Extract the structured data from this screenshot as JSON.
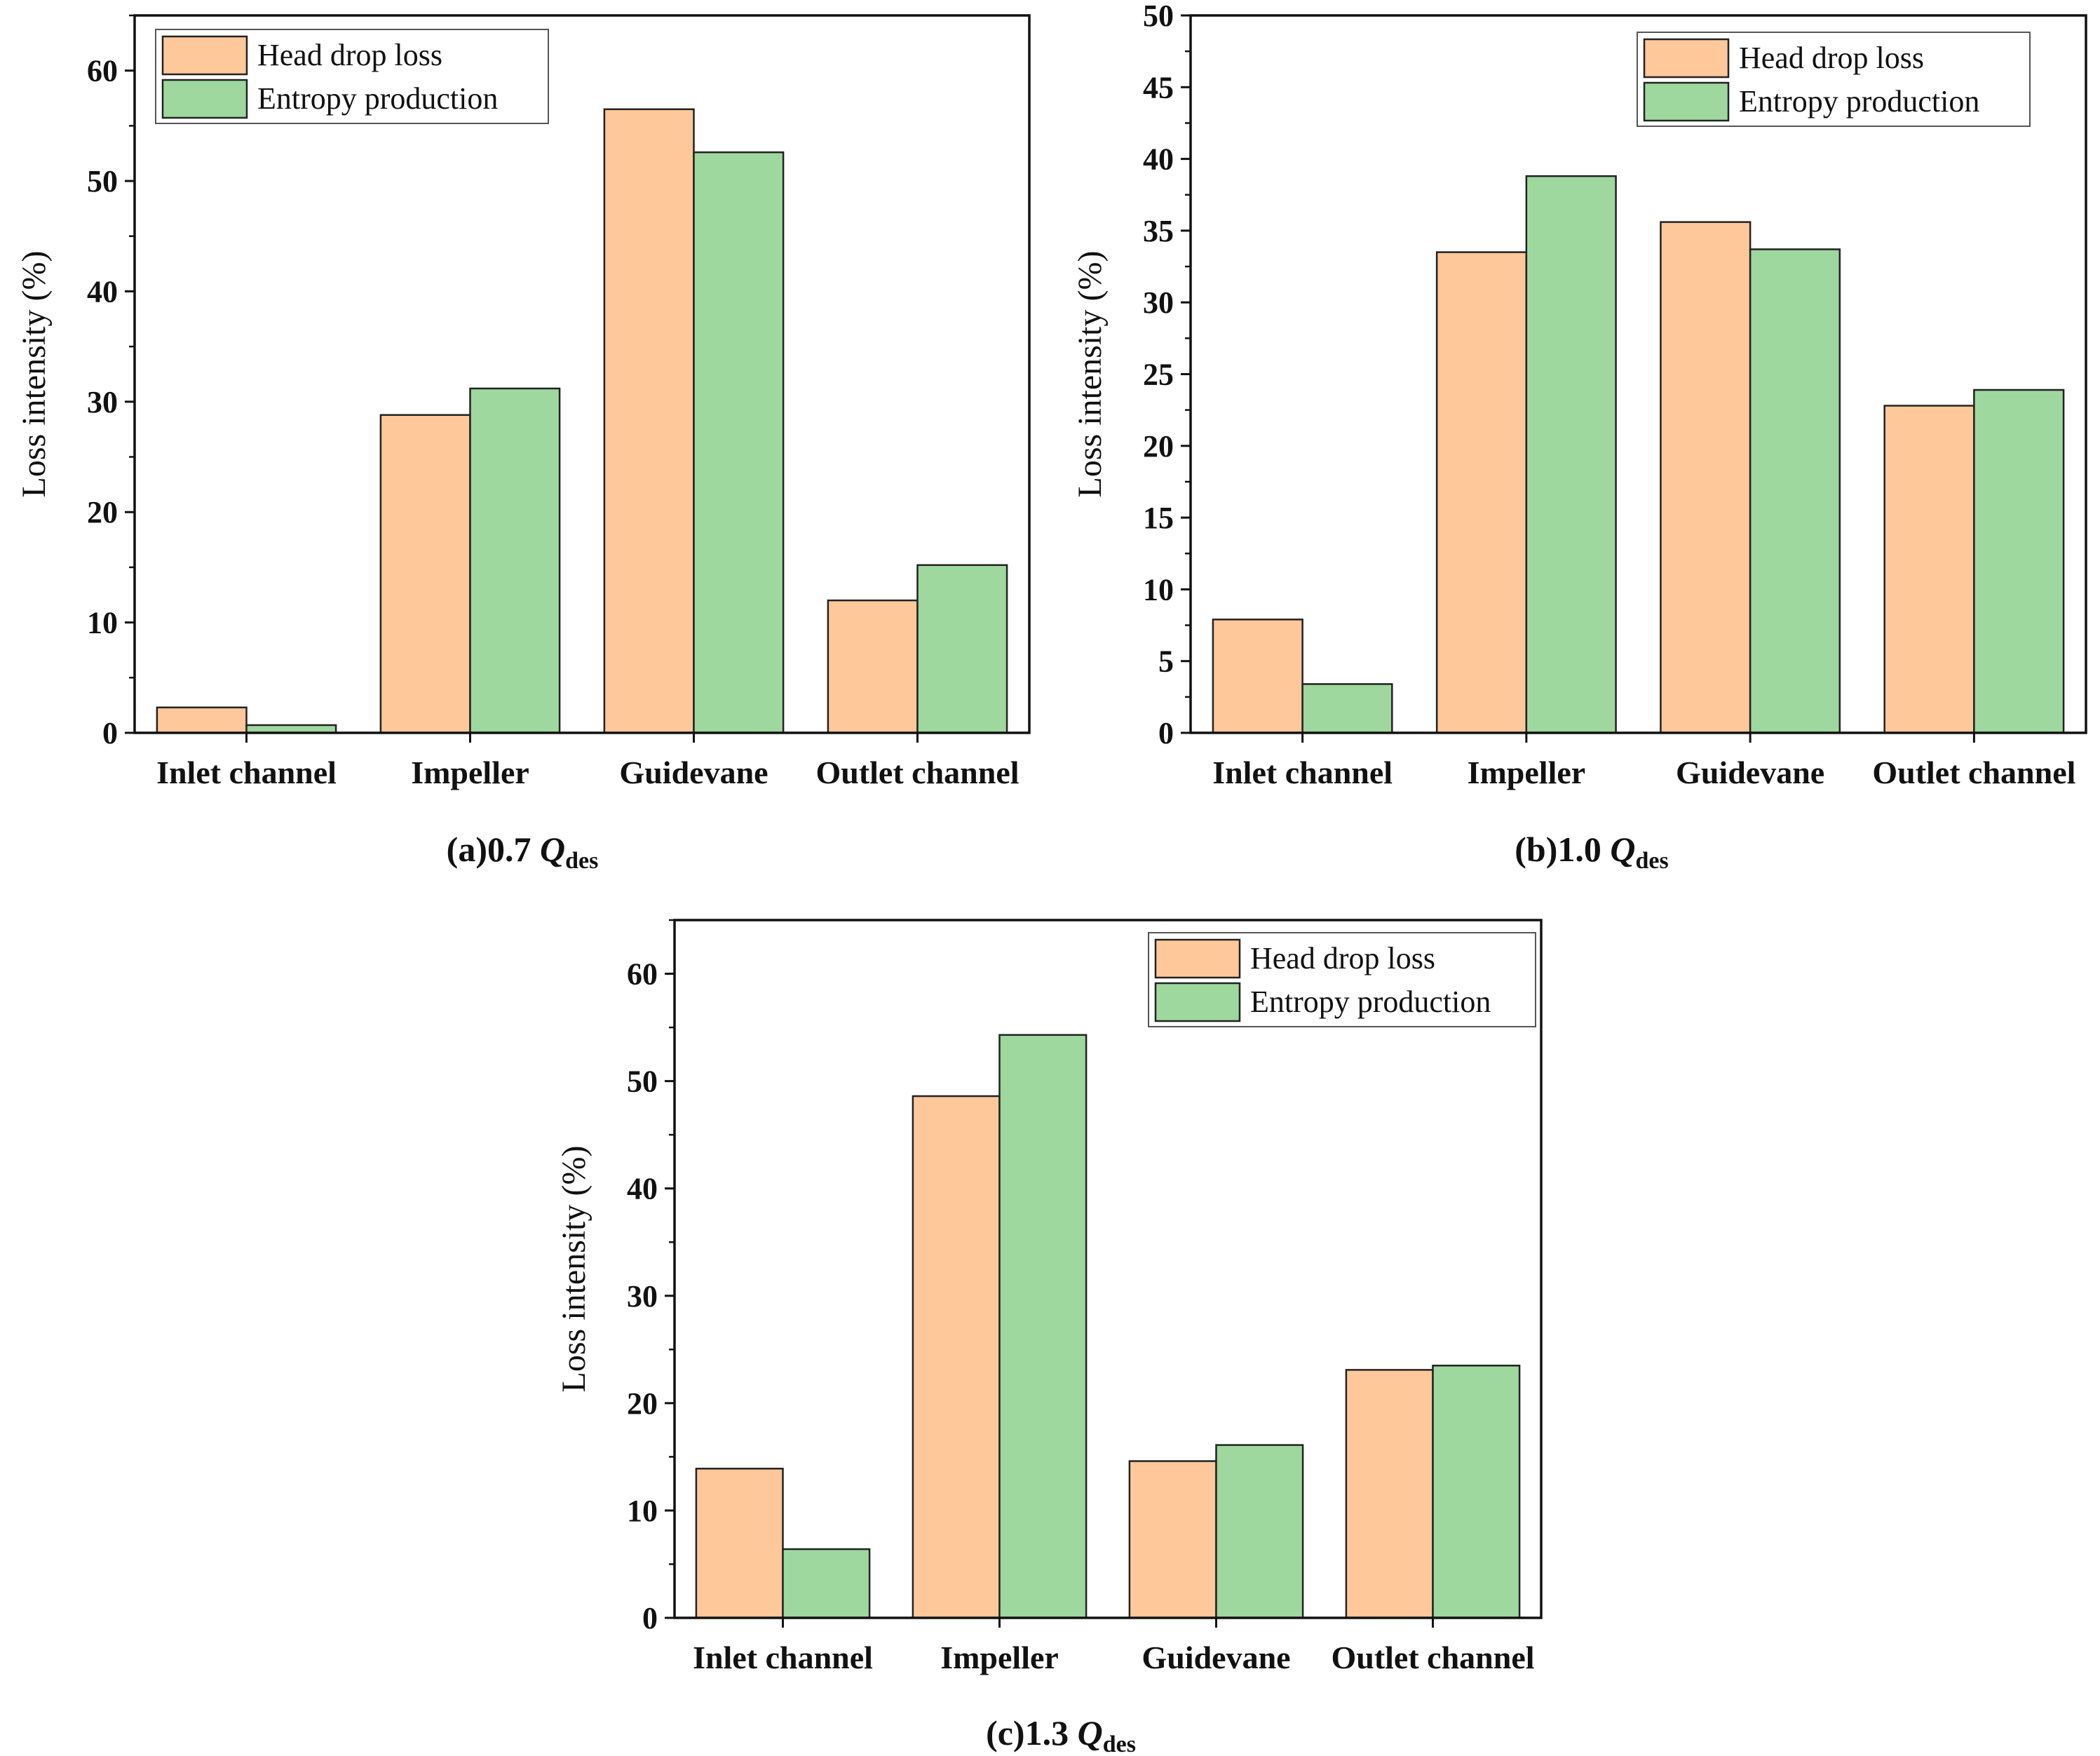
{
  "chart_data": [
    {
      "type": "bar",
      "caption": {
        "prefix": "(a)0.7 ",
        "q": "Q",
        "sub": "des"
      },
      "ylabel": "Loss intensity (%)",
      "ylim": [
        0,
        65
      ],
      "yticks": [
        0,
        10,
        20,
        30,
        40,
        50,
        60
      ],
      "categories": [
        "Inlet channel",
        "Impeller",
        "Guidevane",
        "Outlet channel"
      ],
      "series": [
        {
          "name": "Head drop loss",
          "color": "#FFC89B",
          "values": [
            2.3,
            28.8,
            56.5,
            12.0
          ]
        },
        {
          "name": "Entropy production",
          "color": "#9ED89E",
          "values": [
            0.7,
            31.2,
            52.6,
            15.2
          ]
        }
      ],
      "legend": "top-left",
      "grid": false
    },
    {
      "type": "bar",
      "caption": {
        "prefix": "(b)1.0 ",
        "q": "Q",
        "sub": "des"
      },
      "ylabel": "Loss intensity (%)",
      "ylim": [
        0,
        50
      ],
      "yticks": [
        0,
        5,
        10,
        15,
        20,
        25,
        30,
        35,
        40,
        45,
        50
      ],
      "categories": [
        "Inlet channel",
        "Impeller",
        "Guidevane",
        "Outlet channel"
      ],
      "series": [
        {
          "name": "Head drop loss",
          "color": "#FFC89B",
          "values": [
            7.9,
            33.5,
            35.6,
            22.8
          ]
        },
        {
          "name": "Entropy production",
          "color": "#9ED89E",
          "values": [
            3.4,
            38.8,
            33.7,
            23.9
          ]
        }
      ],
      "legend": "top-right",
      "grid": false
    },
    {
      "type": "bar",
      "caption": {
        "prefix": "(c)1.3 ",
        "q": "Q",
        "sub": "des"
      },
      "ylabel": "Loss intensity (%)",
      "ylim": [
        0,
        65
      ],
      "yticks": [
        0,
        10,
        20,
        30,
        40,
        50,
        60
      ],
      "categories": [
        "Inlet channel",
        "Impeller",
        "Guidevane",
        "Outlet channel"
      ],
      "series": [
        {
          "name": "Head drop loss",
          "color": "#FFC89B",
          "values": [
            13.9,
            48.6,
            14.6,
            23.1
          ]
        },
        {
          "name": "Entropy production",
          "color": "#9ED89E",
          "values": [
            6.4,
            54.3,
            16.1,
            23.5
          ]
        }
      ],
      "legend": "top-right",
      "grid": false
    }
  ]
}
